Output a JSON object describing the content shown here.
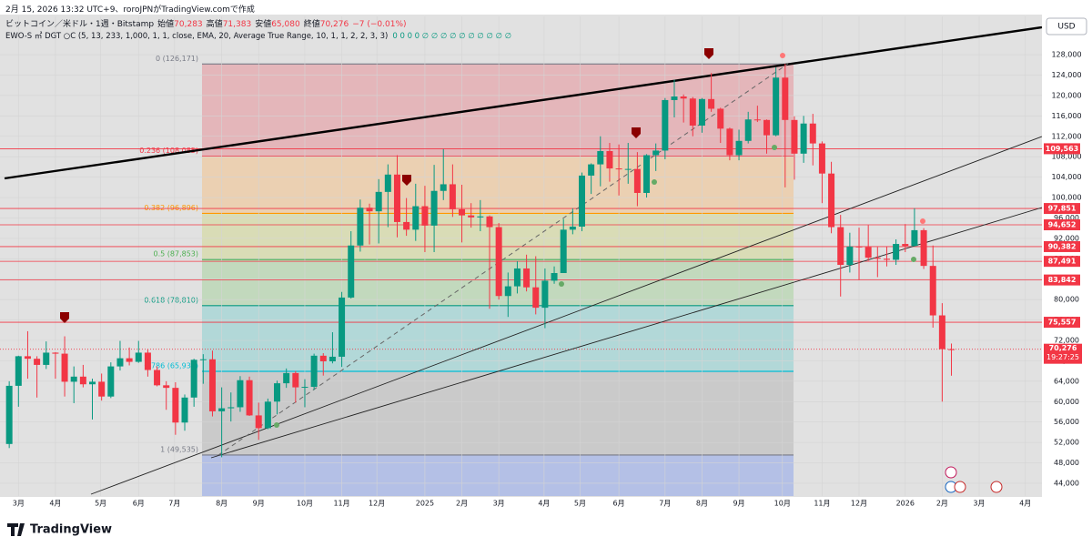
{
  "header": {
    "created": "2月 15, 2026 13:32 UTC+9、roroJPNがTradingView.comで作成",
    "symbol": "ビットコイン／米ドル・1週・Bitstamp",
    "ohlc": [
      {
        "label": "始値",
        "value": "70,283"
      },
      {
        "label": "高値",
        "value": "71,383"
      },
      {
        "label": "安値",
        "value": "65,080"
      },
      {
        "label": "終値",
        "value": "70,276"
      }
    ],
    "change": "−7 (−0.01%)",
    "indicator": "EWO-S ㎡ DGT ○C (5, 13, 233, 1,000, 1, 1, close, EMA, 20, Average True Range, 10, 1, 1, 2, 2, 3, 3)",
    "indicator_values": "0 0 0 0 ∅ ∅ ∅ ∅ ∅ ∅ ∅ ∅ ∅ ∅",
    "currency": "USD",
    "brand": "TradingView"
  },
  "chart_data": {
    "type": "candlestick",
    "up_color": "#089981",
    "down_color": "#f23645",
    "xlim": [
      -1,
      111.8
    ],
    "ylim": [
      41500,
      135500
    ],
    "yticks": [
      {
        "value": 128000,
        "label": "128,000"
      },
      {
        "value": 124000,
        "label": "124,000"
      },
      {
        "value": 120000,
        "label": "120,000"
      },
      {
        "value": 116000,
        "label": "116,000"
      },
      {
        "value": 112000,
        "label": "112,000"
      },
      {
        "value": 108000,
        "label": "108,000"
      },
      {
        "value": 104000,
        "label": "104,000"
      },
      {
        "value": 100000,
        "label": "100,000"
      },
      {
        "value": 96000,
        "label": "96,000"
      },
      {
        "value": 92000,
        "label": "92,000"
      },
      {
        "value": 88000,
        "label": "88,000"
      },
      {
        "value": 84000,
        "label": "84,000"
      },
      {
        "value": 80000,
        "label": "80,000"
      },
      {
        "value": 76000,
        "label": "76,000"
      },
      {
        "value": 72000,
        "label": "72,000"
      },
      {
        "value": 68000,
        "label": "68,000"
      },
      {
        "value": 64000,
        "label": "64,000"
      },
      {
        "value": 60000,
        "label": "60,000"
      },
      {
        "value": 56000,
        "label": "56,000"
      },
      {
        "value": 52000,
        "label": "52,000"
      },
      {
        "value": 48000,
        "label": "48,000"
      },
      {
        "value": 44000,
        "label": "44,000"
      }
    ],
    "xticks": [
      {
        "value": 1,
        "label": "3月"
      },
      {
        "value": 5,
        "label": "4月"
      },
      {
        "value": 9.9,
        "label": "5月"
      },
      {
        "value": 14,
        "label": "6月"
      },
      {
        "value": 17.9,
        "label": "7月"
      },
      {
        "value": 23,
        "label": "8月"
      },
      {
        "value": 27,
        "label": "9月"
      },
      {
        "value": 32,
        "label": "10月"
      },
      {
        "value": 36,
        "label": "11月"
      },
      {
        "value": 39.8,
        "label": "12月"
      },
      {
        "value": 45,
        "label": "2025"
      },
      {
        "value": 49,
        "label": "2月"
      },
      {
        "value": 53,
        "label": "3月"
      },
      {
        "value": 57.9,
        "label": "4月"
      },
      {
        "value": 61.8,
        "label": "5月"
      },
      {
        "value": 66,
        "label": "6月"
      },
      {
        "value": 71,
        "label": "7月"
      },
      {
        "value": 75,
        "label": "8月"
      },
      {
        "value": 79,
        "label": "9月"
      },
      {
        "value": 83.7,
        "label": "10月"
      },
      {
        "value": 88,
        "label": "11月"
      },
      {
        "value": 92,
        "label": "12月"
      },
      {
        "value": 97,
        "label": "2026"
      },
      {
        "value": 101,
        "label": "2月"
      },
      {
        "value": 105,
        "label": "3月"
      },
      {
        "value": 110,
        "label": "4月"
      }
    ],
    "open": [
      51700,
      63100,
      68900,
      68400,
      67200,
      69600,
      69400,
      63900,
      64900,
      63400,
      63900,
      61000,
      66900,
      68500,
      67800,
      69600,
      66200,
      63200,
      62700,
      55900,
      60800,
      68200,
      68300,
      58100,
      58700,
      58900,
      64200,
      57300,
      54800,
      60000,
      63600,
      65600,
      62800,
      62900,
      69000,
      67900,
      68800,
      80400,
      90600,
      98000,
      97300,
      101100,
      104500,
      95200,
      93700,
      98300,
      94500,
      101300,
      102600,
      97700,
      96500,
      96100,
      96300,
      94200,
      80700,
      82600,
      86100,
      82400,
      78400,
      83700,
      85200,
      93700,
      94300,
      104300,
      106500,
      109100,
      105700,
      105600,
      105600,
      100900,
      108300,
      109200,
      119100,
      119800,
      119400,
      114100,
      119300,
      117400,
      113500,
      108300,
      111100,
      115300,
      115200,
      112200,
      123500,
      115200,
      108600,
      114500,
      110600,
      104700,
      94200,
      86800,
      90400,
      90300,
      88200,
      88000,
      87800,
      90900,
      90500,
      93600,
      86600,
      76900,
      70283
    ],
    "high": [
      64000,
      69000,
      73800,
      68900,
      71800,
      69700,
      72800,
      66900,
      67200,
      64500,
      65500,
      67700,
      71900,
      70600,
      71900,
      70200,
      66900,
      64000,
      63800,
      61400,
      68400,
      69300,
      70000,
      62800,
      61800,
      65000,
      64900,
      59800,
      60600,
      64100,
      66500,
      66000,
      64400,
      69400,
      69500,
      73600,
      81500,
      93400,
      99600,
      98800,
      103600,
      106500,
      108300,
      99900,
      102700,
      102300,
      106400,
      109500,
      106500,
      102500,
      98900,
      99500,
      96500,
      95000,
      85300,
      87500,
      88800,
      88500,
      86100,
      86500,
      95800,
      97900,
      104900,
      106700,
      112000,
      110700,
      110400,
      110700,
      108900,
      108500,
      110600,
      119500,
      123100,
      120200,
      119700,
      119500,
      124400,
      117600,
      113700,
      113300,
      116800,
      118000,
      115300,
      125500,
      126200,
      115900,
      116000,
      116400,
      111000,
      107000,
      96600,
      93100,
      94100,
      94600,
      90300,
      90400,
      91800,
      94800,
      97900,
      94000,
      90600,
      79300,
      71383
    ],
    "low": [
      50900,
      59000,
      64500,
      60800,
      66400,
      64500,
      61000,
      59700,
      62800,
      56500,
      60200,
      60700,
      66100,
      67100,
      67600,
      64900,
      63000,
      58400,
      53500,
      54300,
      59000,
      63500,
      57100,
      49100,
      56100,
      58000,
      57200,
      52500,
      54600,
      57500,
      62700,
      59800,
      58900,
      62300,
      65100,
      67500,
      66800,
      80200,
      89400,
      90800,
      91000,
      94200,
      92200,
      92500,
      91500,
      89300,
      89300,
      99500,
      96200,
      91200,
      94100,
      93400,
      78200,
      80000,
      76600,
      81200,
      81600,
      77100,
      74400,
      83100,
      85200,
      92800,
      93400,
      100700,
      102200,
      103100,
      100400,
      102700,
      98300,
      100000,
      105200,
      107500,
      115700,
      114700,
      112000,
      112700,
      116800,
      110700,
      107300,
      107300,
      110600,
      114800,
      108600,
      112000,
      102000,
      103500,
      106800,
      106300,
      98900,
      93000,
      80600,
      85300,
      83900,
      87600,
      84400,
      86500,
      86800,
      89300,
      90400,
      86000,
      74500,
      60000,
      65080
    ],
    "close": [
      63100,
      68900,
      68400,
      67200,
      69600,
      69400,
      63900,
      64900,
      63400,
      63900,
      61000,
      66900,
      68500,
      67800,
      69600,
      66200,
      63200,
      62700,
      55900,
      60800,
      68200,
      68300,
      58100,
      58700,
      58900,
      64200,
      57300,
      54800,
      60000,
      63600,
      65600,
      62800,
      62900,
      69000,
      67900,
      68800,
      80400,
      90600,
      98000,
      97300,
      101100,
      104500,
      95200,
      93700,
      98300,
      94500,
      101300,
      102600,
      97700,
      96500,
      96100,
      96300,
      94200,
      80700,
      82600,
      86100,
      82400,
      78400,
      83700,
      85200,
      93700,
      94300,
      104300,
      106500,
      109100,
      105700,
      105600,
      105600,
      100900,
      108300,
      109200,
      119100,
      119800,
      119400,
      114100,
      119300,
      117400,
      113500,
      108300,
      111100,
      115300,
      115200,
      112200,
      123500,
      115200,
      108600,
      114500,
      110600,
      104700,
      94200,
      86800,
      90400,
      90300,
      88200,
      88000,
      87800,
      90900,
      90500,
      93600,
      86600,
      76900,
      70283,
      70276
    ],
    "fib_levels": [
      {
        "price": 126171,
        "label": "0 (126,171)",
        "color": "#787b86",
        "fill": "#e4b6ba"
      },
      {
        "price": 108085,
        "label": "0.236 (108,085)",
        "color": "#f23645",
        "fill": "#ebd0b2"
      },
      {
        "price": 96896,
        "label": "0.382 (96,896)",
        "color": "#ff9800",
        "fill": "#d9dcb6"
      },
      {
        "price": 87853,
        "label": "0.5 (87,853)",
        "color": "#4caf50",
        "fill": "#c2d9bd"
      },
      {
        "price": 78810,
        "label": "0.618 (78,810)",
        "color": "#089981",
        "fill": "#b2d8d8"
      },
      {
        "price": 65937,
        "label": "0.786 (65,937)",
        "color": "#00bcd4",
        "fill": "#cacaca"
      },
      {
        "price": 49535,
        "label": "1 (49,535)",
        "color": "#787b86",
        "fill": "#b4c0e6"
      }
    ],
    "price_lines": [
      {
        "value": 109563,
        "label": "109,563"
      },
      {
        "value": 97851,
        "label": "97,851"
      },
      {
        "value": 94652,
        "label": "94,652"
      },
      {
        "value": 90382,
        "label": "90,382"
      },
      {
        "value": 87491,
        "label": "87,491"
      },
      {
        "value": 83842,
        "label": "83,842"
      },
      {
        "value": 75557,
        "label": "75,557"
      }
    ],
    "last_price": {
      "value": 70276,
      "label": "70,276",
      "countdown": "19:27:25"
    }
  }
}
